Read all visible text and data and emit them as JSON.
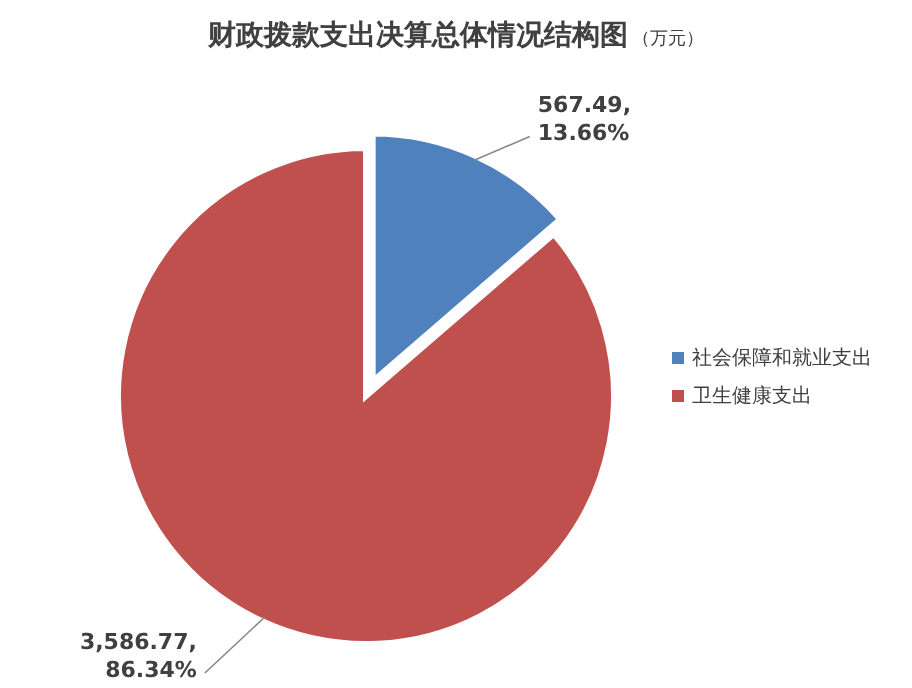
{
  "chart_data": {
    "type": "pie",
    "title": "财政拨款支出决算总体情况结构图",
    "subtitle": "（万元）",
    "categories": [
      "社会保障和就业支出",
      "卫生健康支出"
    ],
    "values": [
      567.49,
      3586.77
    ],
    "colors": [
      "#4f81bd",
      "#c0504d"
    ],
    "value_labels": [
      "567.49, 13.66%",
      "3,586.77, 86.34%"
    ],
    "legend": "right"
  }
}
